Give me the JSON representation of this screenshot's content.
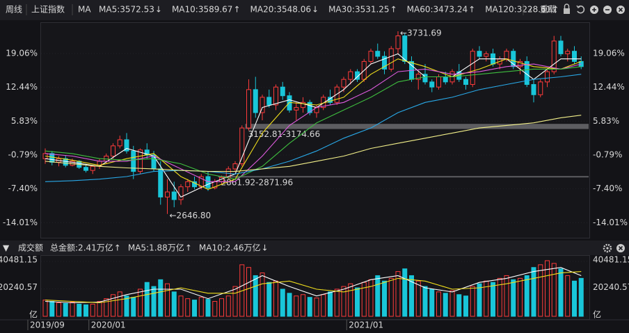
{
  "toolbar": {
    "period": "周线",
    "index_name": "上证指数",
    "indicator": "MA",
    "reload": "重载"
  },
  "chart_data": [
    {
      "type": "candlestick",
      "up_color": "#ff3b3b",
      "down_color": "#19c6d9",
      "categories": [
        "2019/09",
        null,
        null,
        null,
        null,
        null,
        null,
        null,
        null,
        "2020/01",
        null,
        null,
        null,
        null,
        null,
        null,
        null,
        null,
        null,
        null,
        null,
        null,
        null,
        null,
        null,
        null,
        null,
        null,
        null,
        null,
        null,
        null,
        null,
        null,
        null,
        null,
        null,
        null,
        null,
        null,
        null,
        null,
        null,
        null,
        null,
        null,
        null,
        "2021/01",
        null,
        null,
        null,
        null,
        null,
        null,
        null,
        null,
        null,
        null,
        null,
        null,
        null,
        null,
        null,
        null,
        null,
        null,
        null,
        null,
        null,
        null,
        null,
        null,
        null,
        null,
        null,
        null,
        null,
        null,
        null,
        null
      ],
      "open": [
        -1.5,
        -0.5,
        -2.2,
        -1.5,
        -2.8,
        -2.0,
        -3.2,
        -3.8,
        -3.0,
        -2.0,
        -1.0,
        1.0,
        2.2,
        0.0,
        -4.0,
        0.2,
        -0.8,
        -3.5,
        -9.0,
        -8.0,
        -9.5,
        -7.0,
        -6.0,
        -7.0,
        -5.0,
        -7.2,
        -6.0,
        -5.2,
        -3.5,
        -2.5,
        4.5,
        12.0,
        7.5,
        10.5,
        9.0,
        12.5,
        10.8,
        8.0,
        8.5,
        9.5,
        7.5,
        8.5,
        10.5,
        9.5,
        12.5,
        14.0,
        15.5,
        14.0,
        17.5,
        19.5,
        18.5,
        16.0,
        20.0,
        22.5,
        17.5,
        14.0,
        15.0,
        13.5,
        12.5,
        14.5,
        13.5,
        15.5,
        14.0,
        13.0,
        19.5,
        18.5,
        19.0,
        17.0,
        18.0,
        19.5,
        16.5,
        17.5,
        13.0,
        11.0,
        13.5,
        15.5,
        21.5,
        19.0,
        19.5,
        17.5
      ],
      "high": [
        0.5,
        0.0,
        -1.0,
        -0.8,
        -1.5,
        -1.8,
        -2.5,
        -2.8,
        -1.5,
        -0.5,
        1.5,
        3.0,
        3.5,
        1.0,
        0.5,
        1.5,
        0.0,
        -2.0,
        -5.5,
        -6.0,
        -6.5,
        -5.5,
        -5.0,
        -4.5,
        -4.0,
        -5.5,
        -4.8,
        -3.0,
        -2.0,
        5.0,
        14.0,
        14.5,
        11.0,
        12.0,
        13.0,
        13.5,
        11.5,
        9.5,
        10.5,
        10.0,
        9.0,
        11.0,
        12.0,
        13.0,
        14.5,
        16.0,
        16.0,
        18.0,
        20.0,
        21.0,
        19.5,
        20.5,
        23.4,
        23.0,
        18.5,
        15.5,
        17.0,
        14.0,
        15.0,
        15.5,
        16.0,
        17.0,
        14.5,
        20.0,
        20.5,
        19.5,
        20.0,
        18.5,
        20.0,
        20.0,
        18.0,
        18.5,
        14.0,
        14.0,
        16.0,
        22.5,
        22.5,
        20.0,
        20.5,
        18.5
      ],
      "low": [
        -2.5,
        -2.8,
        -3.0,
        -3.2,
        -3.0,
        -3.5,
        -4.2,
        -4.5,
        -3.5,
        -2.5,
        -1.5,
        0.5,
        -0.5,
        -5.5,
        -4.5,
        -1.5,
        -4.0,
        -10.5,
        -12.3,
        -11.0,
        -10.5,
        -8.0,
        -7.5,
        -7.5,
        -7.8,
        -7.5,
        -6.5,
        -5.5,
        -4.0,
        -3.0,
        4.0,
        6.5,
        6.0,
        8.5,
        8.0,
        10.0,
        7.5,
        6.0,
        7.5,
        7.0,
        6.5,
        8.0,
        9.0,
        9.0,
        11.5,
        13.0,
        13.5,
        13.5,
        17.0,
        18.0,
        15.0,
        15.5,
        19.0,
        17.0,
        13.5,
        12.0,
        13.0,
        11.5,
        12.0,
        13.0,
        13.0,
        13.5,
        12.0,
        12.5,
        18.0,
        17.5,
        16.5,
        16.0,
        17.5,
        16.0,
        15.0,
        12.5,
        9.5,
        10.5,
        12.5,
        15.0,
        18.5,
        17.5,
        17.0,
        16.0
      ],
      "close": [
        -0.5,
        -2.2,
        -1.5,
        -2.8,
        -2.0,
        -3.2,
        -3.8,
        -3.0,
        -2.0,
        -1.0,
        1.0,
        2.2,
        0.0,
        -4.0,
        0.2,
        -0.8,
        -3.5,
        -9.0,
        -8.0,
        -9.5,
        -7.0,
        -6.0,
        -7.0,
        -5.0,
        -7.2,
        -6.0,
        -5.2,
        -3.5,
        -2.5,
        4.5,
        12.0,
        7.5,
        10.5,
        9.0,
        12.5,
        10.8,
        8.0,
        8.5,
        9.5,
        7.5,
        8.5,
        10.5,
        9.5,
        12.5,
        14.0,
        15.5,
        14.0,
        17.5,
        19.5,
        18.5,
        16.0,
        20.0,
        22.5,
        17.5,
        14.0,
        15.0,
        13.5,
        12.5,
        14.5,
        13.5,
        15.5,
        14.0,
        13.0,
        19.5,
        18.5,
        19.0,
        17.0,
        18.0,
        19.5,
        16.5,
        17.5,
        13.0,
        11.0,
        13.5,
        15.5,
        21.5,
        19.0,
        19.5,
        17.5,
        16.5
      ],
      "ylim": [
        -16.69,
        24.35
      ],
      "yticks": [
        {
          "value": 19.06,
          "label": "19.06%"
        },
        {
          "value": 12.44,
          "label": "12.44%"
        },
        {
          "value": 5.83,
          "label": "5.83%"
        },
        {
          "value": -0.79,
          "label": "-0.79%"
        },
        {
          "value": -7.4,
          "label": "-7.40%"
        },
        {
          "value": -14.01,
          "label": "-14.01%"
        }
      ],
      "positive_tick_color": "#ff4d4d",
      "negative_tick_color": "#2fd12f",
      "series": [
        {
          "name": "MA5:3572.53",
          "arrow": "↓",
          "arrow_color": "#2fd12f",
          "color": "#ffffff",
          "x": [
            0,
            4,
            8,
            12,
            16,
            20,
            24,
            28,
            32,
            36,
            40,
            44,
            48,
            52,
            56,
            60,
            64,
            68,
            72,
            76,
            79
          ],
          "values": [
            -1.5,
            -2.2,
            -3.0,
            0.5,
            -1.0,
            -9.0,
            -6.5,
            -4.5,
            8.5,
            10.0,
            8.5,
            12.0,
            17.0,
            19.0,
            14.5,
            14.5,
            18.0,
            18.0,
            14.0,
            18.0,
            18.0
          ]
        },
        {
          "name": "MA10:3589.67",
          "arrow": "↑",
          "arrow_color": "#ff3b3b",
          "color": "#f2e01c",
          "x": [
            0,
            4,
            8,
            12,
            16,
            20,
            24,
            28,
            32,
            36,
            40,
            44,
            48,
            52,
            56,
            60,
            64,
            68,
            72,
            76,
            79
          ],
          "values": [
            -1.0,
            -1.8,
            -2.8,
            -1.5,
            -0.5,
            -5.0,
            -7.5,
            -5.5,
            3.5,
            9.5,
            9.0,
            10.5,
            15.0,
            18.0,
            16.5,
            14.5,
            16.0,
            18.0,
            16.5,
            16.0,
            17.5
          ]
        },
        {
          "name": "MA20:3548.06",
          "arrow": "↓",
          "arrow_color": "#2fd12f",
          "color": "#e05ce0",
          "x": [
            0,
            4,
            8,
            12,
            16,
            20,
            24,
            28,
            32,
            36,
            40,
            44,
            48,
            52,
            56,
            60,
            64,
            68,
            72,
            76,
            79
          ],
          "values": [
            -0.5,
            -1.0,
            -2.0,
            -2.0,
            -1.0,
            -3.5,
            -6.0,
            -6.0,
            -1.0,
            5.0,
            8.5,
            9.5,
            12.0,
            15.5,
            16.0,
            15.0,
            15.5,
            16.5,
            17.0,
            16.0,
            17.0
          ]
        },
        {
          "name": "MA30:3531.25",
          "arrow": "↑",
          "arrow_color": "#ff3b3b",
          "color": "#3fbf3f",
          "x": [
            0,
            4,
            8,
            12,
            16,
            20,
            24,
            28,
            32,
            36,
            40,
            44,
            48,
            52,
            56,
            60,
            64,
            68,
            72,
            76,
            79
          ],
          "values": [
            0.0,
            -0.5,
            -1.5,
            -1.8,
            -1.5,
            -2.5,
            -4.5,
            -5.5,
            -3.0,
            1.5,
            5.5,
            8.0,
            10.5,
            13.5,
            14.5,
            14.5,
            15.0,
            15.5,
            16.0,
            16.0,
            16.5
          ]
        },
        {
          "name": "MA60:3473.24",
          "arrow": "↑",
          "arrow_color": "#ff3b3b",
          "color": "#29a9e8",
          "x": [
            0,
            4,
            8,
            12,
            16,
            20,
            24,
            28,
            32,
            36,
            40,
            44,
            48,
            52,
            56,
            60,
            64,
            68,
            72,
            76,
            79
          ],
          "values": [
            -6.0,
            -5.8,
            -5.5,
            -5.0,
            -4.0,
            -3.8,
            -4.0,
            -4.5,
            -3.5,
            -2.0,
            0.0,
            2.5,
            4.5,
            7.5,
            9.5,
            10.5,
            12.0,
            13.0,
            14.0,
            14.5,
            15.0
          ]
        },
        {
          "name": "MA120:3228.61",
          "arrow": "↑",
          "arrow_color": "#ff3b3b",
          "color": "#f3f08a",
          "x": [
            0,
            4,
            8,
            12,
            16,
            20,
            24,
            28,
            32,
            36,
            40,
            44,
            48,
            52,
            56,
            60,
            64,
            68,
            72,
            76,
            79
          ],
          "values": [
            -2.0,
            -2.5,
            -3.0,
            -3.3,
            -3.5,
            -3.8,
            -4.0,
            -4.0,
            -3.5,
            -3.0,
            -2.0,
            -1.0,
            0.5,
            1.5,
            2.5,
            3.5,
            4.5,
            5.0,
            5.5,
            6.5,
            7.0
          ]
        }
      ],
      "annotations": [
        {
          "text": "←3731.69",
          "x": 52,
          "y": 23.4
        },
        {
          "text": "←2646.80",
          "x": 18,
          "y": -12.3
        }
      ],
      "zones": [
        {
          "label": "3152.81-3174.66",
          "x0": 30,
          "y0": 4.3,
          "y1": 5.3
        },
        {
          "label": "2861.92-2871.96",
          "x0": 26,
          "y0": -5.15,
          "y1": -4.9
        }
      ],
      "zone_color": "#6a6a6e"
    },
    {
      "type": "bar",
      "title": "成交额",
      "summary": {
        "text": "总金额:2.41万亿",
        "arrow": "↑",
        "color": "#2fd12f",
        "arrow_color": "#ff3b3b"
      },
      "values": [
        12000,
        11000,
        10000,
        9500,
        10500,
        9000,
        8500,
        9000,
        11000,
        13000,
        16000,
        18000,
        15000,
        14000,
        20000,
        25000,
        22000,
        27000,
        24000,
        18000,
        15000,
        13000,
        12000,
        14000,
        12500,
        11000,
        13000,
        15000,
        22000,
        38000,
        36000,
        30000,
        32000,
        25000,
        26000,
        20000,
        17000,
        15000,
        16000,
        14000,
        13500,
        16000,
        18000,
        20000,
        22000,
        24000,
        21000,
        25000,
        27000,
        30000,
        26000,
        28000,
        33000,
        35000,
        30000,
        26000,
        22000,
        20000,
        18000,
        17000,
        19000,
        16000,
        15000,
        22000,
        24000,
        26000,
        25000,
        28000,
        30000,
        27000,
        28000,
        30000,
        36000,
        38000,
        41000,
        39000,
        35000,
        30000,
        26000,
        28000
      ],
      "ylim": [
        0,
        44580
      ],
      "yticks": [
        {
          "value": 0,
          "label": "亿"
        },
        20240.57,
        40481.15
      ],
      "series": [
        {
          "name": "MA5:1.88万亿",
          "arrow": "↑",
          "arrow_color": "#ff3b3b",
          "color": "#ffffff",
          "x": [
            0,
            4,
            8,
            12,
            16,
            20,
            24,
            28,
            32,
            36,
            40,
            44,
            48,
            52,
            56,
            60,
            64,
            68,
            72,
            76,
            79
          ],
          "values": [
            11000,
            10000,
            10500,
            16000,
            20000,
            20000,
            13000,
            20000,
            30000,
            22000,
            15000,
            20000,
            27000,
            30000,
            21000,
            18000,
            25000,
            28000,
            33000,
            36000,
            30000
          ]
        },
        {
          "name": "MA10:2.46万亿",
          "arrow": "↓",
          "arrow_color": "#2fd12f",
          "color": "#f2e01c",
          "x": [
            0,
            4,
            8,
            12,
            16,
            20,
            24,
            28,
            32,
            36,
            40,
            44,
            48,
            52,
            56,
            60,
            64,
            68,
            72,
            76,
            79
          ],
          "values": [
            12000,
            11000,
            10000,
            13000,
            17000,
            21000,
            17000,
            17000,
            24000,
            26000,
            20000,
            18000,
            22000,
            28000,
            26000,
            20000,
            21000,
            24000,
            28000,
            32000,
            33000
          ]
        }
      ]
    }
  ]
}
